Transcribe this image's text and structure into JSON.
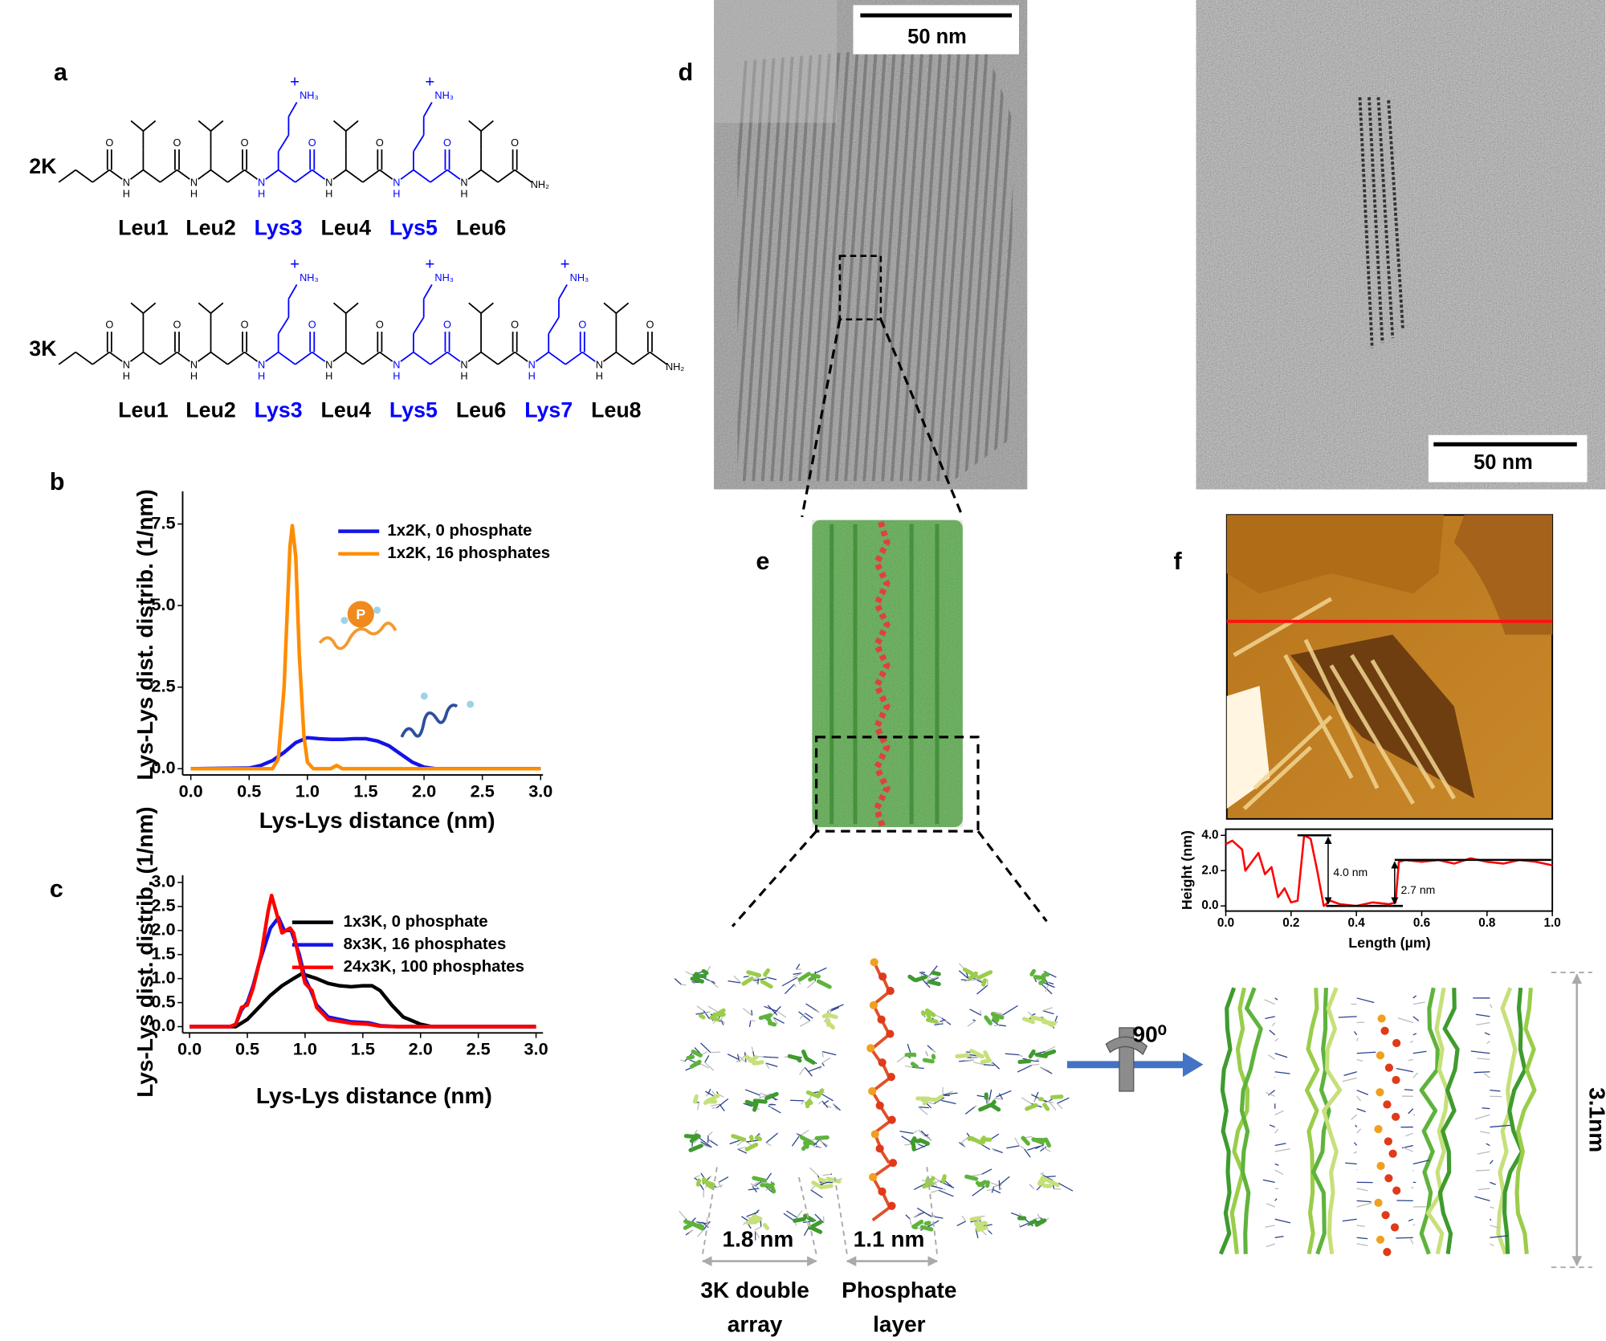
{
  "panel_labels": [
    "a",
    "b",
    "c",
    "d",
    "e",
    "f"
  ],
  "highlight_color": "#0000ff",
  "atoms": {
    "n": "N",
    "h": "H",
    "o": "O",
    "amine": "NH₃",
    "plus": "+",
    "amide": "NH₂"
  },
  "structures": [
    {
      "label": "2K",
      "residues": [
        {
          "name": "Leu1",
          "color": "#000000"
        },
        {
          "name": "Leu2",
          "color": "#000000"
        },
        {
          "name": "Lys3",
          "color": "#0000ff"
        },
        {
          "name": "Leu4",
          "color": "#000000"
        },
        {
          "name": "Lys5",
          "color": "#0000ff"
        },
        {
          "name": "Leu6",
          "color": "#000000"
        }
      ]
    },
    {
      "label": "3K",
      "residues": [
        {
          "name": "Leu1",
          "color": "#000000"
        },
        {
          "name": "Leu2",
          "color": "#000000"
        },
        {
          "name": "Lys3",
          "color": "#0000ff"
        },
        {
          "name": "Leu4",
          "color": "#000000"
        },
        {
          "name": "Lys5",
          "color": "#0000ff"
        },
        {
          "name": "Leu6",
          "color": "#000000"
        },
        {
          "name": "Lys7",
          "color": "#0000ff"
        },
        {
          "name": "Leu8",
          "color": "#000000"
        }
      ]
    }
  ],
  "phosphate_icon_label": "P",
  "chart_data": [
    {
      "type": "line",
      "xlabel": "Lys-Lys distance (nm)",
      "ylabel": "Lys-Lys dist. distrib. (1/nm)",
      "xlim": [
        -0.07,
        3.02
      ],
      "ylim": [
        -0.19,
        8.5
      ],
      "xticks": [
        {
          "value": 0,
          "label": "0.0"
        },
        0.5,
        {
          "value": 1,
          "label": "1.0"
        },
        1.5,
        {
          "value": 2,
          "label": "2.0"
        },
        2.5,
        {
          "value": 3,
          "label": "3.0"
        }
      ],
      "yticks": [
        {
          "value": 0,
          "label": "0.0"
        },
        2.5,
        {
          "value": 5,
          "label": "5.0"
        },
        7.5
      ],
      "series": [
        {
          "name": "1x2K, 0 phosphate",
          "color": "#1414e6",
          "x": [
            0,
            0.5,
            0.6,
            0.7,
            0.8,
            0.9,
            1.0,
            1.1,
            1.2,
            1.3,
            1.4,
            1.5,
            1.6,
            1.7,
            1.8,
            1.9,
            2.0,
            2.1,
            3.0
          ],
          "values": [
            0,
            0.02,
            0.1,
            0.25,
            0.5,
            0.8,
            0.95,
            0.92,
            0.9,
            0.9,
            0.92,
            0.92,
            0.85,
            0.7,
            0.45,
            0.2,
            0.05,
            0,
            0
          ]
        },
        {
          "name": "1x2K, 16 phosphates",
          "color": "#ff8c00",
          "x": [
            0,
            0.7,
            0.75,
            0.8,
            0.85,
            0.87,
            0.9,
            0.93,
            0.97,
            1.0,
            1.05,
            1.2,
            1.25,
            1.3,
            3.0
          ],
          "values": [
            0,
            0,
            0.3,
            2.5,
            6.8,
            7.45,
            6.5,
            3.5,
            1.0,
            0.2,
            0,
            0,
            0.1,
            0,
            0
          ]
        }
      ]
    },
    {
      "type": "line",
      "xlabel": "Lys-Lys distance (nm)",
      "ylabel": "Lys-Lys dist. distrib. (1/nm)",
      "xlim": [
        -0.06,
        3.06
      ],
      "ylim": [
        -0.13,
        3.15
      ],
      "xticks": [
        {
          "value": 0,
          "label": "0.0"
        },
        0.5,
        {
          "value": 1,
          "label": "1.0"
        },
        1.5,
        {
          "value": 2,
          "label": "2.0"
        },
        2.5,
        {
          "value": 3,
          "label": "3.0"
        }
      ],
      "yticks": [
        {
          "value": 0,
          "label": "0.0"
        },
        0.5,
        {
          "value": 1,
          "label": "1.0"
        },
        1.5,
        {
          "value": 2,
          "label": "2.0"
        },
        2.5,
        {
          "value": 3,
          "label": "3.0"
        }
      ],
      "series": [
        {
          "name": "1x3K, 0 phosphate",
          "color": "#000000",
          "x": [
            0,
            0.4,
            0.5,
            0.6,
            0.7,
            0.8,
            0.9,
            0.97,
            1.1,
            1.2,
            1.3,
            1.4,
            1.5,
            1.58,
            1.65,
            1.75,
            1.85,
            2.0,
            2.1,
            3.0
          ],
          "values": [
            0,
            0,
            0.15,
            0.4,
            0.65,
            0.85,
            1.0,
            1.1,
            1.0,
            0.9,
            0.85,
            0.83,
            0.85,
            0.85,
            0.75,
            0.45,
            0.2,
            0.05,
            0,
            0
          ]
        },
        {
          "name": "8x3K, 16 phosphates",
          "color": "#1414e6",
          "x": [
            0,
            0.35,
            0.4,
            0.45,
            0.5,
            0.55,
            0.6,
            0.7,
            0.77,
            0.82,
            0.88,
            0.95,
            1.0,
            1.05,
            1.1,
            1.2,
            1.4,
            1.55,
            1.65,
            1.8,
            3.0
          ],
          "values": [
            0,
            0,
            0.05,
            0.35,
            0.5,
            0.85,
            1.3,
            2.05,
            2.27,
            2.0,
            2.0,
            1.5,
            1.0,
            0.75,
            0.45,
            0.2,
            0.1,
            0.08,
            0.02,
            0,
            0
          ]
        },
        {
          "name": "24x3K, 100 phosphates",
          "color": "#ff0000",
          "x": [
            0,
            0.35,
            0.4,
            0.45,
            0.5,
            0.55,
            0.62,
            0.68,
            0.71,
            0.76,
            0.8,
            0.87,
            0.9,
            0.95,
            1.0,
            1.06,
            1.1,
            1.2,
            1.4,
            1.55,
            1.65,
            1.8,
            3.0
          ],
          "values": [
            0,
            0,
            0.05,
            0.4,
            0.45,
            0.8,
            1.5,
            2.4,
            2.73,
            2.3,
            1.95,
            2.05,
            1.95,
            1.4,
            0.9,
            0.75,
            0.4,
            0.15,
            0.07,
            0.05,
            0.01,
            0,
            0
          ]
        }
      ]
    },
    {
      "type": "line",
      "xlabel": "Length (µm)",
      "ylabel": "Height (nm)",
      "xlim": [
        0,
        1
      ],
      "ylim": [
        -0.29,
        4.35
      ],
      "xticks": [
        {
          "value": 0,
          "label": "0.0"
        },
        0.2,
        0.4,
        0.6,
        0.8,
        {
          "value": 1,
          "label": "1.0"
        }
      ],
      "yticks": [
        {
          "value": 0,
          "label": "0.0"
        },
        {
          "value": 2,
          "label": "2.0"
        },
        {
          "value": 4,
          "label": "4.0"
        }
      ],
      "annotations": [
        "4.0 nm",
        "2.7 nm"
      ],
      "series": [
        {
          "color": "#ff0000",
          "x": [
            0,
            0.02,
            0.05,
            0.06,
            0.08,
            0.1,
            0.12,
            0.14,
            0.16,
            0.18,
            0.2,
            0.22,
            0.24,
            0.26,
            0.28,
            0.3,
            0.32,
            0.35,
            0.4,
            0.45,
            0.5,
            0.52,
            0.53,
            0.55,
            0.6,
            0.65,
            0.7,
            0.75,
            0.8,
            0.85,
            0.9,
            0.95,
            1.0
          ],
          "values": [
            3.5,
            3.7,
            3.2,
            2.0,
            2.5,
            3.0,
            1.8,
            2.2,
            0.5,
            1.0,
            0.2,
            0.3,
            4.0,
            3.8,
            2.0,
            0,
            0.3,
            0.1,
            0,
            0.2,
            0.1,
            0.2,
            2.5,
            2.6,
            2.5,
            2.6,
            2.4,
            2.7,
            2.5,
            2.4,
            2.6,
            2.5,
            2.3
          ]
        }
      ]
    }
  ],
  "micrographs": {
    "scale_bars": [
      "50 nm",
      "50 nm"
    ]
  },
  "model": {
    "rotation": "90⁰",
    "height": "3.1nm",
    "spacings": [
      "1.8 nm",
      "1.1 nm"
    ],
    "captions": [
      [
        "3K double",
        "array"
      ],
      [
        "Phosphate",
        "layer"
      ]
    ]
  }
}
